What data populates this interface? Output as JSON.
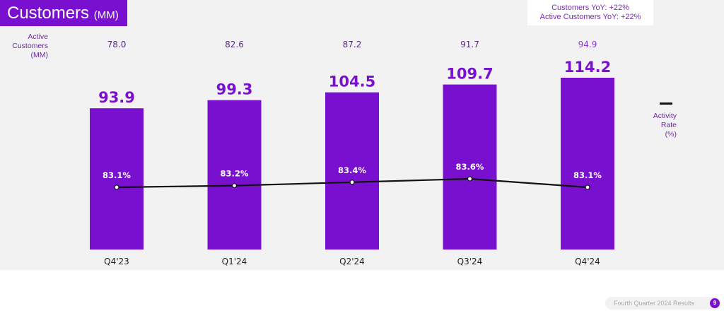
{
  "title": {
    "main": "Customers",
    "unit": "(MM)"
  },
  "yoy": {
    "customers": "Customers YoY: +22%",
    "active": "Active Customers YoY: +22%"
  },
  "active_label": [
    "Active",
    "Customers",
    "(MM)"
  ],
  "legend": {
    "label": [
      "Activity",
      "Rate",
      "(%)"
    ]
  },
  "footer": {
    "text": "Fourth Quarter 2024 Results",
    "page": "9"
  },
  "colors": {
    "bar": "#7a10cf",
    "line": "#111111",
    "active_text": "#6b2c9c"
  },
  "chart_data": {
    "type": "bar",
    "categories": [
      "Q4'23",
      "Q1'24",
      "Q2'24",
      "Q3'24",
      "Q4'24"
    ],
    "series": [
      {
        "name": "Customers (MM)",
        "values": [
          93.9,
          99.3,
          104.5,
          109.7,
          114.2
        ],
        "labels": [
          "93.9",
          "99.3",
          "104.5",
          "109.7",
          "114.2"
        ]
      },
      {
        "name": "Active Customers (MM)",
        "values": [
          78.0,
          82.6,
          87.2,
          91.7,
          94.9
        ],
        "labels": [
          "78.0",
          "82.6",
          "87.2",
          "91.7",
          "94.9"
        ]
      },
      {
        "name": "Activity Rate (%)",
        "type": "line",
        "values": [
          83.1,
          83.2,
          83.4,
          83.6,
          83.1
        ],
        "labels": [
          "83.1%",
          "83.2%",
          "83.4%",
          "83.6%",
          "83.1%"
        ]
      }
    ],
    "ylim": [
      0,
      114.2
    ]
  }
}
